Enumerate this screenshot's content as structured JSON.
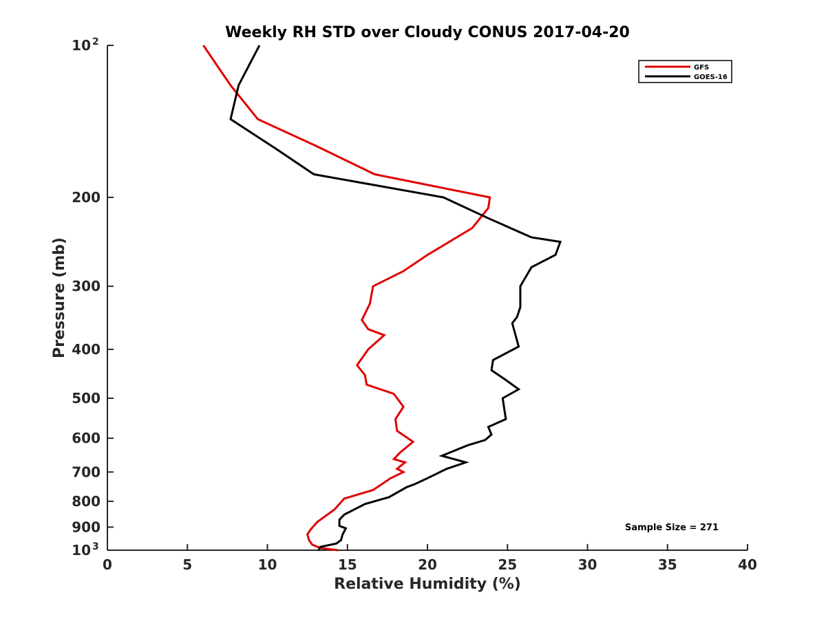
{
  "chart_data": {
    "type": "line",
    "title": "Weekly RH STD over Cloudy CONUS 2017-04-20",
    "xlabel": "Relative Humidity (%)",
    "ylabel": "Pressure (mb)",
    "xlim": [
      0,
      40
    ],
    "ylim": [
      100,
      1000
    ],
    "y_scale": "log",
    "y_reversed": true,
    "grid": false,
    "legend_position": "top-right",
    "x_ticks": [
      0,
      5,
      10,
      15,
      20,
      25,
      30,
      35,
      40
    ],
    "x_tick_labels": [
      "0",
      "5",
      "10",
      "15",
      "20",
      "25",
      "30",
      "35",
      "40"
    ],
    "y_ticks": [
      100,
      200,
      300,
      400,
      500,
      600,
      700,
      800,
      900,
      1000
    ],
    "y_tick_labels": [
      {
        "base": "10",
        "sup": "2"
      },
      {
        "base": "200",
        "sup": ""
      },
      {
        "base": "300",
        "sup": ""
      },
      {
        "base": "400",
        "sup": ""
      },
      {
        "base": "500",
        "sup": ""
      },
      {
        "base": "600",
        "sup": ""
      },
      {
        "base": "700",
        "sup": ""
      },
      {
        "base": "800",
        "sup": ""
      },
      {
        "base": "900",
        "sup": ""
      },
      {
        "base": "10",
        "sup": "3"
      }
    ],
    "annotation": "Sample Size = 271",
    "series": [
      {
        "name": "GFS",
        "color": "#e00000",
        "points": [
          [
            6.0,
            100
          ],
          [
            7.7,
            120
          ],
          [
            9.4,
            140
          ],
          [
            13.0,
            158
          ],
          [
            16.7,
            180
          ],
          [
            23.9,
            200
          ],
          [
            23.8,
            210
          ],
          [
            22.8,
            230
          ],
          [
            20.0,
            260
          ],
          [
            18.5,
            280
          ],
          [
            16.6,
            300
          ],
          [
            16.4,
            325
          ],
          [
            15.9,
            350
          ],
          [
            16.3,
            365
          ],
          [
            17.3,
            375
          ],
          [
            16.3,
            400
          ],
          [
            15.6,
            430
          ],
          [
            16.1,
            450
          ],
          [
            16.2,
            470
          ],
          [
            17.9,
            490
          ],
          [
            18.5,
            520
          ],
          [
            18.0,
            550
          ],
          [
            18.1,
            580
          ],
          [
            19.1,
            610
          ],
          [
            18.3,
            640
          ],
          [
            17.9,
            660
          ],
          [
            18.6,
            670
          ],
          [
            18.1,
            690
          ],
          [
            18.5,
            700
          ],
          [
            17.7,
            720
          ],
          [
            16.6,
            760
          ],
          [
            14.8,
            790
          ],
          [
            14.2,
            830
          ],
          [
            13.1,
            880
          ],
          [
            12.7,
            910
          ],
          [
            12.5,
            930
          ],
          [
            12.6,
            955
          ],
          [
            12.8,
            975
          ],
          [
            13.3,
            990
          ],
          [
            14.4,
            1000
          ]
        ]
      },
      {
        "name": "GOES-16",
        "color": "#000000",
        "points": [
          [
            9.5,
            100
          ],
          [
            8.2,
            120
          ],
          [
            7.7,
            140
          ],
          [
            10.5,
            160
          ],
          [
            12.9,
            180
          ],
          [
            21.0,
            200
          ],
          [
            23.8,
            220
          ],
          [
            26.5,
            240
          ],
          [
            28.3,
            245
          ],
          [
            28.0,
            260
          ],
          [
            26.5,
            275
          ],
          [
            25.8,
            300
          ],
          [
            25.8,
            330
          ],
          [
            25.6,
            345
          ],
          [
            25.3,
            355
          ],
          [
            25.7,
            395
          ],
          [
            24.1,
            420
          ],
          [
            24.0,
            440
          ],
          [
            24.9,
            460
          ],
          [
            25.7,
            480
          ],
          [
            24.7,
            500
          ],
          [
            24.8,
            525
          ],
          [
            24.9,
            550
          ],
          [
            23.8,
            570
          ],
          [
            24.0,
            590
          ],
          [
            23.6,
            605
          ],
          [
            22.5,
            620
          ],
          [
            20.9,
            650
          ],
          [
            22.4,
            670
          ],
          [
            21.2,
            690
          ],
          [
            20.0,
            720
          ],
          [
            19.2,
            740
          ],
          [
            18.7,
            750
          ],
          [
            17.6,
            785
          ],
          [
            16.1,
            810
          ],
          [
            14.8,
            850
          ],
          [
            14.5,
            870
          ],
          [
            14.5,
            895
          ],
          [
            14.9,
            905
          ],
          [
            14.7,
            930
          ],
          [
            14.6,
            955
          ],
          [
            14.3,
            970
          ],
          [
            13.3,
            985
          ],
          [
            13.2,
            1000
          ]
        ]
      }
    ]
  }
}
